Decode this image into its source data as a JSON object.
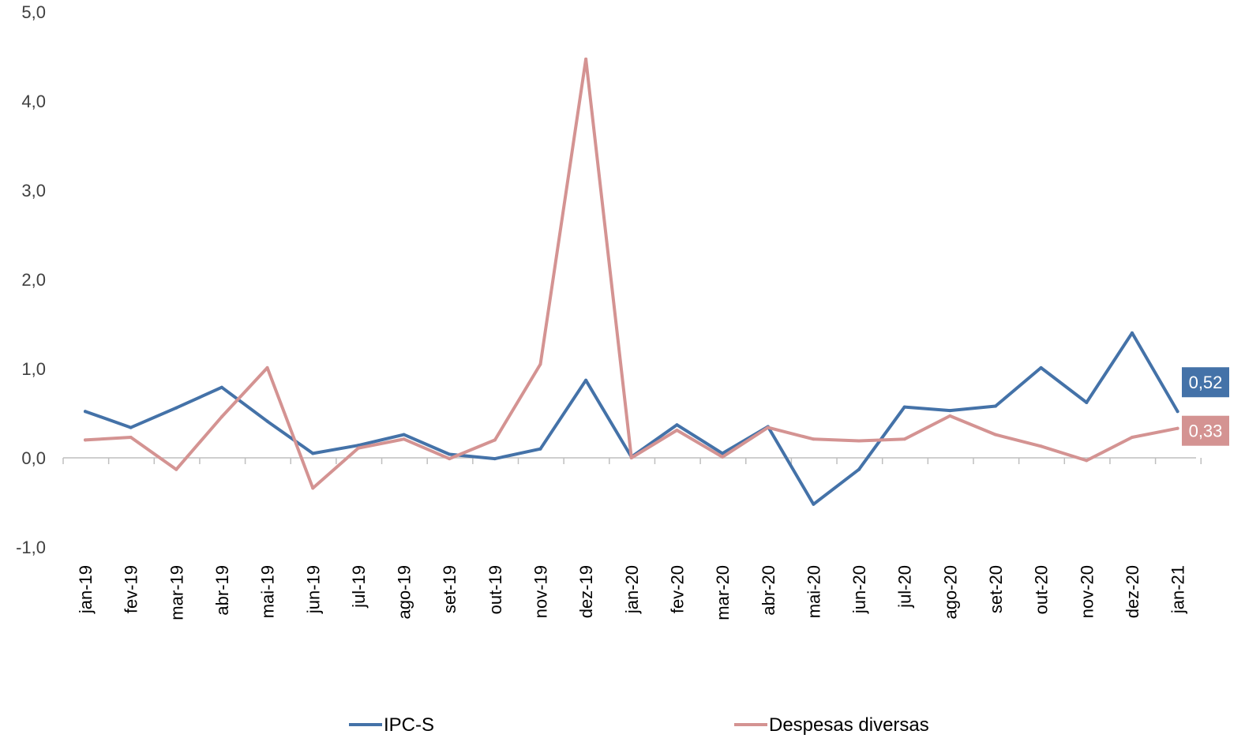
{
  "chart_data": {
    "type": "line",
    "title": "",
    "xlabel": "",
    "ylabel": "",
    "ylim": [
      -1.0,
      5.0
    ],
    "yticks": [
      "-1,0",
      "0,0",
      "1,0",
      "2,0",
      "3,0",
      "4,0",
      "5,0"
    ],
    "ytick_values": [
      -1,
      0,
      1,
      2,
      3,
      4,
      5
    ],
    "grid": false,
    "legend_position": "bottom",
    "categories": [
      "jan-19",
      "fev-19",
      "mar-19",
      "abr-19",
      "mai-19",
      "jun-19",
      "jul-19",
      "ago-19",
      "set-19",
      "out-19",
      "nov-19",
      "dez-19",
      "jan-20",
      "fev-20",
      "mar-20",
      "abr-20",
      "mai-20",
      "jun-20",
      "jul-20",
      "ago-20",
      "set-20",
      "out-20",
      "nov-20",
      "dez-20",
      "jan-21"
    ],
    "series": [
      {
        "name": "IPC-S",
        "color": "#4472a8",
        "values": [
          0.52,
          0.34,
          0.56,
          0.79,
          0.41,
          0.05,
          0.14,
          0.26,
          0.04,
          -0.01,
          0.1,
          0.87,
          0.01,
          0.37,
          0.05,
          0.35,
          -0.52,
          -0.13,
          0.57,
          0.53,
          0.58,
          1.01,
          0.62,
          1.4,
          0.52
        ],
        "end_label": "0,52"
      },
      {
        "name": "Despesas diversas",
        "color": "#d49392",
        "values": [
          0.2,
          0.23,
          -0.13,
          0.46,
          1.01,
          -0.34,
          0.11,
          0.21,
          -0.01,
          0.2,
          1.05,
          4.47,
          0.0,
          0.31,
          0.01,
          0.34,
          0.21,
          0.19,
          0.21,
          0.47,
          0.26,
          0.13,
          -0.03,
          0.23,
          0.33
        ],
        "end_label": "0,33"
      }
    ]
  }
}
